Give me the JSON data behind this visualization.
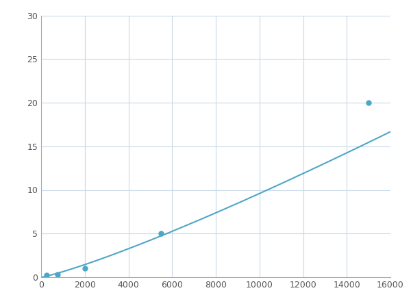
{
  "x_points": [
    250,
    750,
    2000,
    5500,
    15000
  ],
  "y_points": [
    0.2,
    0.3,
    1.0,
    5.0,
    20.0
  ],
  "line_color": "#4da6c8",
  "marker_color": "#4da6c8",
  "marker_size": 5,
  "line_width": 1.5,
  "xlim": [
    0,
    16000
  ],
  "ylim": [
    0,
    30
  ],
  "xticks": [
    0,
    2000,
    4000,
    6000,
    8000,
    10000,
    12000,
    14000,
    16000
  ],
  "yticks": [
    0,
    5,
    10,
    15,
    20,
    25,
    30
  ],
  "grid_color": "#c8d8e8",
  "background_color": "#ffffff",
  "fig_width": 6.0,
  "fig_height": 4.5,
  "dpi": 100
}
